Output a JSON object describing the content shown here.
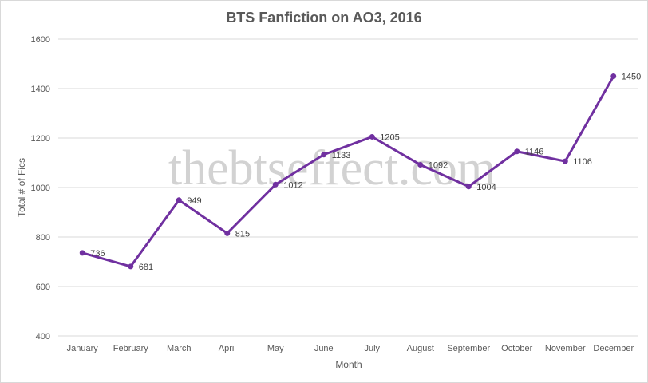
{
  "chart_data": {
    "type": "line",
    "title": "BTS Fanfiction on AO3, 2016",
    "xlabel": "Month",
    "ylabel": "Total # of Fics",
    "categories": [
      "January",
      "February",
      "March",
      "April",
      "May",
      "June",
      "July",
      "August",
      "September",
      "October",
      "November",
      "December"
    ],
    "series": [
      {
        "values": [
          736,
          681,
          949,
          815,
          1012,
          1133,
          1205,
          1092,
          1004,
          1146,
          1106,
          1450
        ],
        "color": "#7030a0"
      }
    ],
    "ylim": [
      400,
      1600
    ],
    "yticks": [
      400,
      600,
      800,
      1000,
      1200,
      1400,
      1600
    ],
    "grid": true,
    "legend": "none",
    "data_labels": true
  },
  "watermark": "thebtseffect.com",
  "colors": {
    "series": "#7030a0",
    "gridline": "#d9d9d9",
    "text": "#595959"
  }
}
